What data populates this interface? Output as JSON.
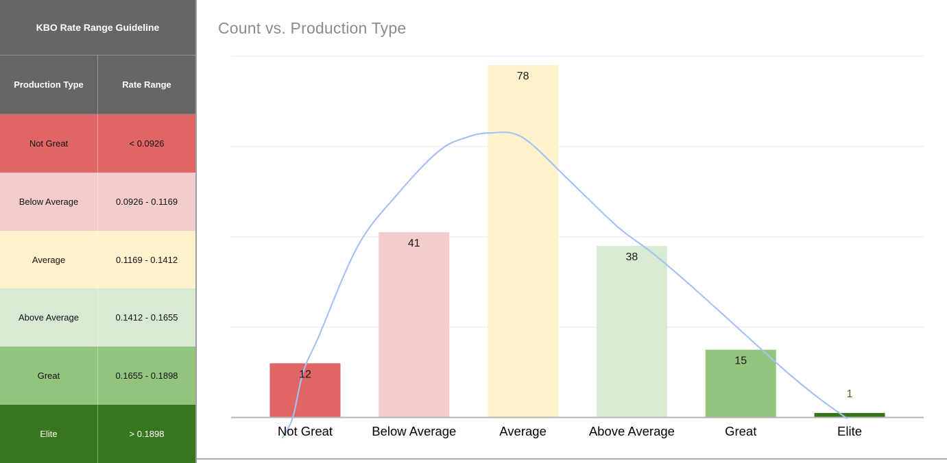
{
  "table": {
    "title": "KBO Rate Range Guideline",
    "header_bg": "#666666",
    "header_fg": "#ffffff",
    "columns": [
      "Production Type",
      "Rate Range"
    ],
    "rows": [
      {
        "type": "Not Great",
        "range": "< 0.0926",
        "bg": "#e06666",
        "fg": "#101010"
      },
      {
        "type": "Below Average",
        "range": "0.0926 - 0.1169",
        "bg": "#f4cccc",
        "fg": "#101010"
      },
      {
        "type": "Average",
        "range": "0.1169 - 0.1412",
        "bg": "#fff2cc",
        "fg": "#101010"
      },
      {
        "type": "Above Average",
        "range": "0.1412 - 0.1655",
        "bg": "#d9ead3",
        "fg": "#101010"
      },
      {
        "type": "Great",
        "range": "0.1655 - 0.1898",
        "bg": "#93c47d",
        "fg": "#101010"
      },
      {
        "type": "Elite",
        "range": "> 0.1898",
        "bg": "#38761d",
        "fg": "#ffffff"
      }
    ]
  },
  "chart_data": {
    "type": "bar",
    "title": "Count vs. Production Type",
    "categories": [
      "Not Great",
      "Below Average",
      "Average",
      "Above Average",
      "Great",
      "Elite"
    ],
    "values": [
      12,
      41,
      78,
      38,
      15,
      1
    ],
    "bar_colors": [
      "#e06666",
      "#f4cccc",
      "#fff2cc",
      "#d9ead3",
      "#93c47d",
      "#38761d"
    ],
    "value_label_colors": [
      "#1a1a1a",
      "#1a1a1a",
      "#1a1a1a",
      "#1a1a1a",
      "#1a1a1a",
      "#38761d"
    ],
    "xlabel": "",
    "ylabel": "",
    "ylim": [
      0,
      80
    ],
    "gridline_step": 20,
    "grid": true,
    "y_tick_labels_shown": false,
    "legend": "none",
    "axis_color": "#b5b5b5",
    "gridline_color": "#e8e8e8",
    "category_label_color": "#000000",
    "overlay_curve": {
      "name": "normal-distribution-fit",
      "color": "#a4c2f4",
      "points_fx_v": [
        {
          "fx": 0.0743,
          "v": -4.5
        },
        {
          "fx": 0.0891,
          "v": 0
        },
        {
          "fx": 0.104,
          "v": 10
        },
        {
          "fx": 0.1267,
          "v": 18
        },
        {
          "fx": 0.1832,
          "v": 38
        },
        {
          "fx": 0.2406,
          "v": 49.5
        },
        {
          "fx": 0.3,
          "v": 59
        },
        {
          "fx": 0.3396,
          "v": 62
        },
        {
          "fx": 0.3743,
          "v": 63
        },
        {
          "fx": 0.4208,
          "v": 62
        },
        {
          "fx": 0.4881,
          "v": 52.5
        },
        {
          "fx": 0.5574,
          "v": 42.3
        },
        {
          "fx": 0.6069,
          "v": 36.6
        },
        {
          "fx": 0.6564,
          "v": 30.2
        },
        {
          "fx": 0.7059,
          "v": 23.4
        },
        {
          "fx": 0.7554,
          "v": 16.5
        },
        {
          "fx": 0.805,
          "v": 9.7
        },
        {
          "fx": 0.8475,
          "v": 4.4
        },
        {
          "fx": 0.8891,
          "v": -0.2
        }
      ]
    }
  }
}
